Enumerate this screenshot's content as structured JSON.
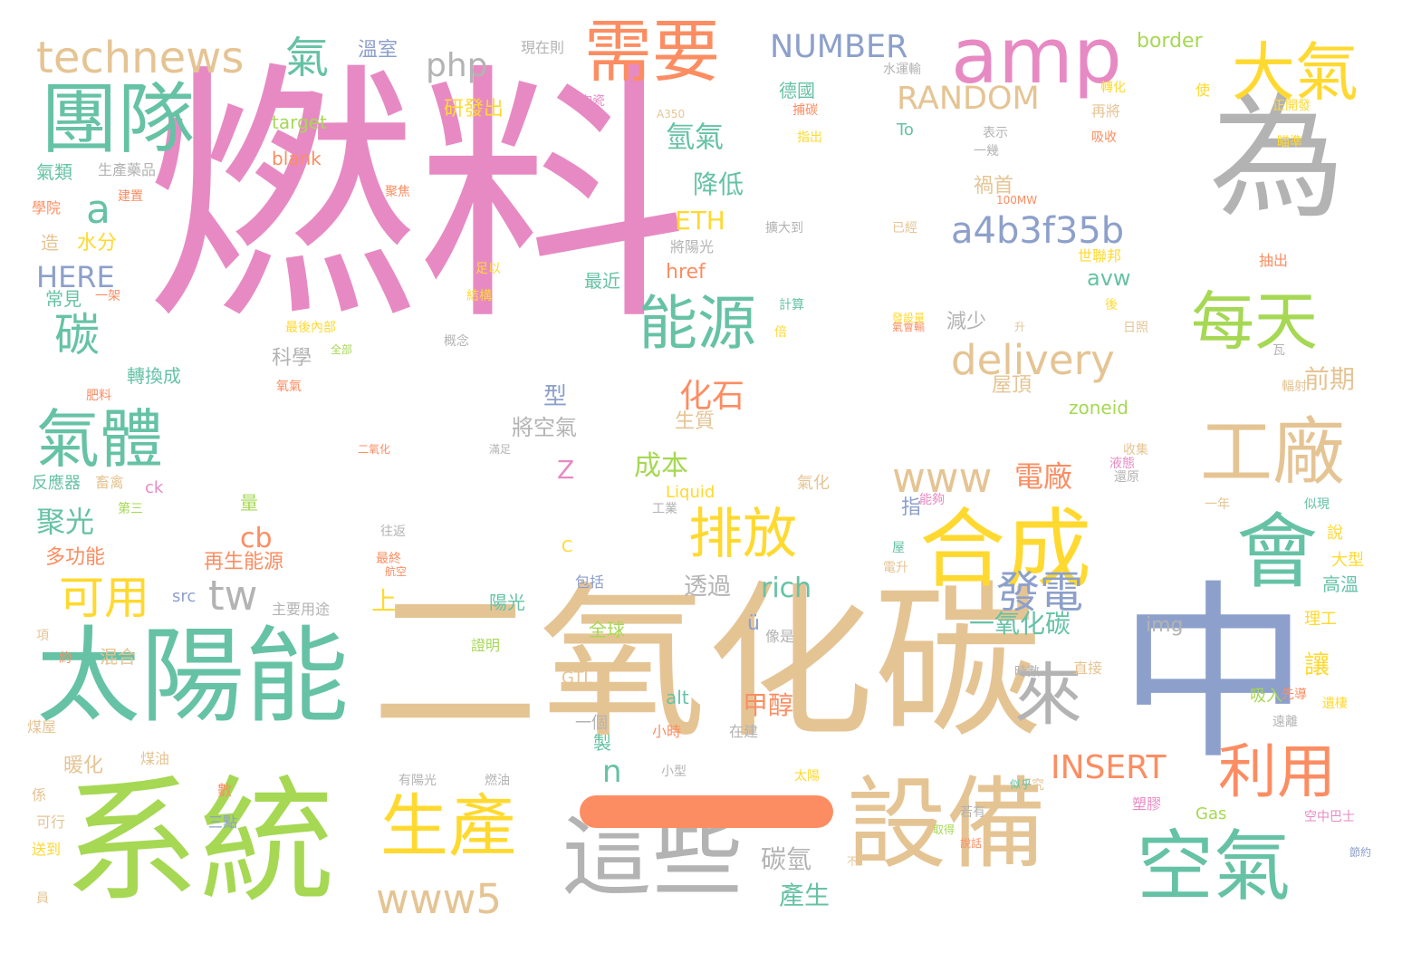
{
  "colors": {
    "pink": "#e78ac3",
    "tan": "#e5c494",
    "green": "#a6d854",
    "teal": "#66c2a5",
    "grey": "#b3b3b3",
    "orange": "#fc8d62",
    "yellow": "#ffd92f",
    "blue": "#8da0cb"
  },
  "words": [
    "燃料",
    "二氧化碳",
    "系統",
    "太陽能",
    "中",
    "設備",
    "這些",
    "空氣",
    "為",
    "會",
    "合成",
    "團隊",
    "amp",
    "需要",
    "大氣",
    "每天",
    "工廠",
    "排放",
    "生產",
    "能源",
    "來",
    "利用",
    "氣體",
    "technews",
    "www5",
    "www",
    "發電",
    "可用",
    "delivery",
    "碳",
    "a4b3f35b",
    "tw",
    "氣",
    "NUMBER",
    "RANDOM",
    "php",
    "INSERT",
    "化石",
    "電廠",
    "聚光",
    "成本",
    "氫氣",
    "降低",
    "ETH",
    "甲醇",
    "一氧化碳",
    "讓",
    "透過",
    "rich",
    "cb",
    "碳氫",
    "產生",
    "a",
    "n",
    "HERE",
    "Z",
    "上",
    "前期",
    "型",
    "將空氣",
    "科學",
    "減少",
    "禍首",
    "多功能",
    "再生能源",
    "全球",
    "暖化",
    "border",
    "target",
    "blank",
    "溫室",
    "現在則",
    "研發出",
    "德國",
    "水分",
    "常見",
    "氣類",
    "生產藥品",
    "造",
    "學院",
    "建置",
    "混合",
    "轉換成",
    "肥料",
    "反應器",
    "畜禽",
    "第三",
    "ck",
    "src",
    "主要用途",
    "陽光",
    "證明",
    "包括",
    "GTL",
    "Liquid",
    "工業",
    "alt",
    "一個",
    "製",
    "小時",
    "在建",
    "小型",
    "有陽光",
    "燃油",
    "太陽",
    "研究",
    "屋頂",
    "zoneid",
    "生質",
    "指",
    "量",
    "最近",
    "足以",
    "結構",
    "最後內部",
    "全部",
    "概念",
    "氧氣",
    "倍",
    "計算",
    "avw",
    "href",
    "將陽光",
    "擴大到",
    "已經",
    "世聯邦",
    "後",
    "日照",
    "抽出",
    "瓦",
    "輻射",
    "收集",
    "液態",
    "還原",
    "氣化",
    "能夠",
    "電升",
    "屋",
    "說",
    "大型",
    "高溫",
    "理工",
    "img",
    "像是",
    "項",
    "約",
    "煤屋",
    "吸入",
    "直接",
    "時數",
    "遠離",
    "先導",
    "遺棲",
    "塑膠",
    "若有",
    "空中巴士",
    "Gas",
    "可行",
    "數",
    "三點",
    "送到",
    "員",
    "係",
    "煤油",
    "To",
    "表示",
    "一幾",
    "吸收",
    "正開發",
    "再將",
    "轉化",
    "A350",
    "捕碳",
    "指出",
    "水運輸",
    "陶瓷",
    "使",
    "瞄準",
    "聚焦",
    "100MW",
    "C",
    "二氧化",
    "滿足",
    "往返",
    "最終",
    "航空",
    "ü",
    "似現",
    "氣會輸",
    "發設量",
    "升",
    "一架",
    "不",
    "節約",
    "說話",
    "取得",
    "似乎",
    "一年",
    "出家"
  ]
}
